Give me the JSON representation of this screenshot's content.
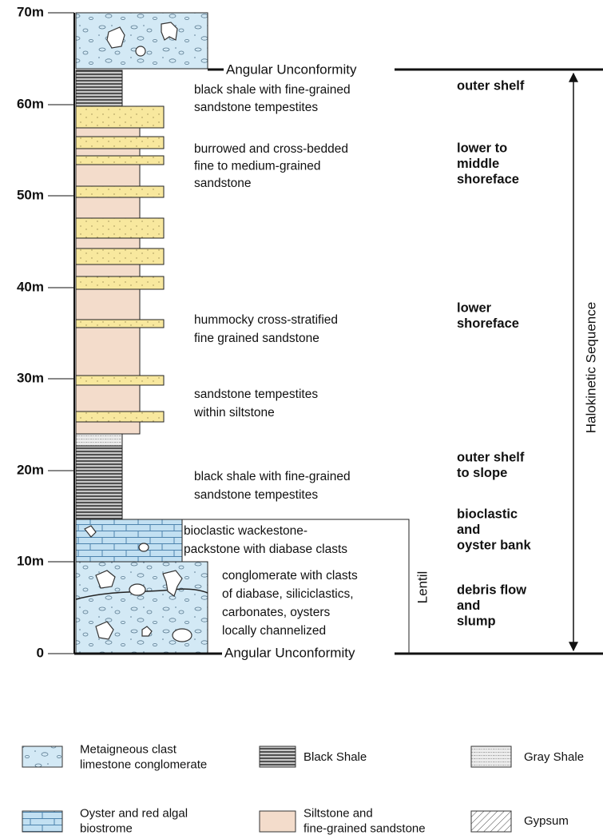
{
  "axis": {
    "ticks": [
      "70m",
      "60m",
      "50m",
      "40m",
      "30m",
      "20m",
      "10m",
      "0"
    ]
  },
  "unconformities": [
    "Angular Unconformity",
    "Angular Unconformity"
  ],
  "descriptions": [
    [
      "black shale with fine-grained",
      "sandstone tempestites"
    ],
    [
      "burrowed and cross-bedded",
      "fine to medium-grained",
      "sandstone"
    ],
    [
      "hummocky cross-stratified",
      "fine grained sandstone"
    ],
    [
      "sandstone tempestites",
      "within siltstone"
    ],
    [
      "black shale with fine-grained",
      "sandstone tempestites"
    ],
    [
      "bioclastic wackestone-",
      "packstone with diabase clasts"
    ],
    [
      "conglomerate with clasts",
      "of diabase, siliciclastics,",
      "carbonates, oysters",
      "locally channelized"
    ]
  ],
  "environments": [
    [
      "outer shelf"
    ],
    [
      "lower to",
      "middle",
      "shoreface"
    ],
    [
      "lower",
      "shoreface"
    ],
    [
      "outer shelf",
      "to slope"
    ],
    [
      "bioclastic",
      "and",
      "oyster bank"
    ],
    [
      "debris flow",
      "and",
      "slump"
    ]
  ],
  "sequence_label": "Halokinetic Sequence",
  "lentil_label": "Lentil",
  "legend": [
    [
      "Metaigneous clast",
      "limestone conglomerate"
    ],
    [
      "Black Shale"
    ],
    [
      "Gray Shale"
    ],
    [
      "Oyster and red algal",
      "biostrome"
    ],
    [
      "Siltstone and",
      "fine-grained sandstone"
    ],
    [
      "Gypsum"
    ]
  ]
}
